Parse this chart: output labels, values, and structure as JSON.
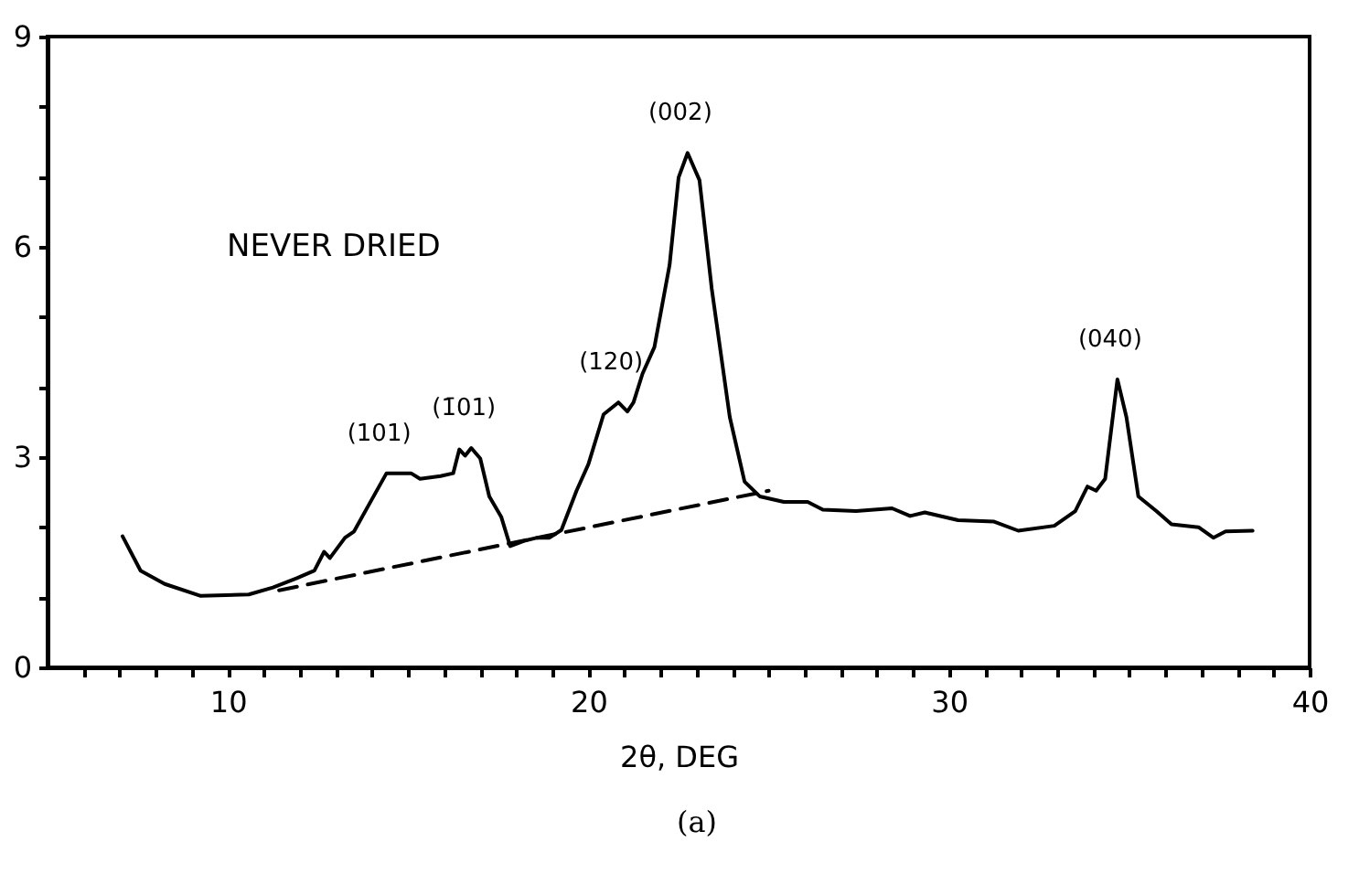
{
  "chart_data": {
    "type": "line",
    "xlabel": "2θ, DEG",
    "xlim": [
      5,
      40
    ],
    "ylim": [
      0,
      9
    ],
    "xticks": [
      {
        "value": 6,
        "label": null
      },
      {
        "value": 7,
        "label": null
      },
      {
        "value": 8,
        "label": null
      },
      {
        "value": 9,
        "label": null
      },
      10,
      {
        "value": 11,
        "label": null
      },
      {
        "value": 12,
        "label": null
      },
      {
        "value": 13,
        "label": null
      },
      {
        "value": 14,
        "label": null
      },
      {
        "value": 15,
        "label": null
      },
      {
        "value": 16,
        "label": null
      },
      {
        "value": 17,
        "label": null
      },
      {
        "value": 18,
        "label": null
      },
      {
        "value": 19,
        "label": null
      },
      20,
      {
        "value": 21,
        "label": null
      },
      {
        "value": 22,
        "label": null
      },
      {
        "value": 23,
        "label": null
      },
      {
        "value": 24,
        "label": null
      },
      {
        "value": 25,
        "label": null
      },
      {
        "value": 26,
        "label": null
      },
      {
        "value": 27,
        "label": null
      },
      {
        "value": 28,
        "label": null
      },
      {
        "value": 29,
        "label": null
      },
      30,
      {
        "value": 31,
        "label": null
      },
      {
        "value": 32,
        "label": null
      },
      {
        "value": 33,
        "label": null
      },
      {
        "value": 34,
        "label": null
      },
      {
        "value": 35,
        "label": null
      },
      {
        "value": 36,
        "label": null
      },
      {
        "value": 37,
        "label": null
      },
      {
        "value": 38,
        "label": null
      },
      {
        "value": 39,
        "label": null
      },
      40
    ],
    "yticks": [
      0,
      {
        "value": 1,
        "label": null
      },
      {
        "value": 2,
        "label": null
      },
      3,
      {
        "value": 4,
        "label": null
      },
      {
        "value": 5,
        "label": null
      },
      6,
      {
        "value": 7,
        "label": null
      },
      {
        "value": 8,
        "label": null
      },
      9
    ],
    "series": [
      {
        "color": "#000000",
        "line_style": "solid",
        "x": [
          7.08,
          7.58,
          8.25,
          9.25,
          10.58,
          11.25,
          11.9,
          12.4,
          12.67,
          12.83,
          13.25,
          13.5,
          13.9,
          14.4,
          15.08,
          15.33,
          15.9,
          16.25,
          16.42,
          16.58,
          16.75,
          17.0,
          17.25,
          17.58,
          17.83,
          18.25,
          18.58,
          18.92,
          19.25,
          19.67,
          20.0,
          20.42,
          20.83,
          21.08,
          21.25,
          21.5,
          21.83,
          22.25,
          22.5,
          22.75,
          23.08,
          23.42,
          23.92,
          24.33,
          24.75,
          25.42,
          26.08,
          26.5,
          27.42,
          28.42,
          28.92,
          29.33,
          30.25,
          31.25,
          31.92,
          32.92,
          33.5,
          33.84,
          34.08,
          34.33,
          34.67,
          34.92,
          35.25,
          35.75,
          36.17,
          36.92,
          37.33,
          37.67,
          38.42
        ],
        "values": [
          1.87,
          1.38,
          1.19,
          1.02,
          1.04,
          1.14,
          1.27,
          1.38,
          1.65,
          1.56,
          1.85,
          1.94,
          2.31,
          2.77,
          2.77,
          2.69,
          2.73,
          2.77,
          3.11,
          3.02,
          3.13,
          2.98,
          2.44,
          2.15,
          1.73,
          1.81,
          1.85,
          1.85,
          1.96,
          2.52,
          2.9,
          3.61,
          3.78,
          3.65,
          3.78,
          4.19,
          4.57,
          5.74,
          6.99,
          7.34,
          6.95,
          5.4,
          3.57,
          2.65,
          2.44,
          2.36,
          2.36,
          2.25,
          2.23,
          2.27,
          2.16,
          2.21,
          2.1,
          2.08,
          1.95,
          2.02,
          2.23,
          2.58,
          2.52,
          2.69,
          4.11,
          3.57,
          2.44,
          2.23,
          2.04,
          2.0,
          1.85,
          1.94,
          1.95
        ]
      },
      {
        "color": "#000000",
        "line_style": "dashed",
        "x": [
          11.42,
          25.0
        ],
        "values": [
          1.1,
          2.52
        ]
      }
    ],
    "annotations": [
      "NEVER DRIED",
      "(a)",
      {
        "text": "(101)",
        "x": 14.4,
        "y": 2.77
      },
      {
        "text": "(1̄01)",
        "x": 16.75,
        "y": 3.13
      },
      {
        "text": "(120)",
        "x": 20.83,
        "y": 3.78
      },
      {
        "text": "(002)",
        "x": 22.75,
        "y": 7.34
      },
      {
        "text": "(040)",
        "x": 34.67,
        "y": 4.11
      }
    ]
  }
}
